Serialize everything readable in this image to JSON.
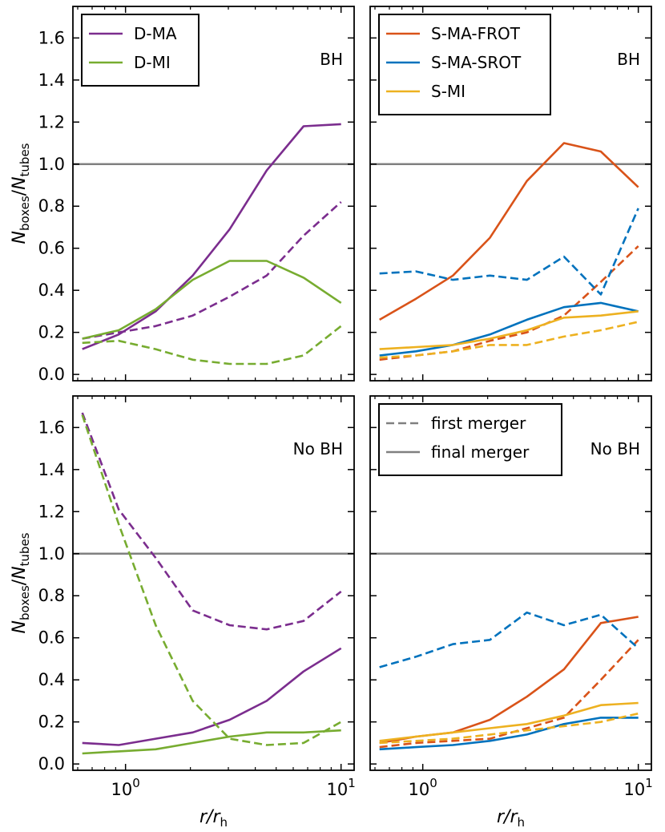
{
  "colors": {
    "D-MA": "#7b2d8e",
    "D-MI": "#77ac30",
    "S-MA-FROT": "#d95319",
    "S-MA-SROT": "#0072bd",
    "S-MI": "#edb120",
    "reference_line": "#808080",
    "legend_style": "#808080"
  },
  "chart_data": [
    {
      "type": "line",
      "panel": "top-left",
      "annotation": "BH",
      "xscale": "log",
      "xlim": [
        0.57,
        11.5
      ],
      "ylim": [
        -0.03,
        1.75
      ],
      "x": [
        0.63,
        0.93,
        1.38,
        2.05,
        3.04,
        4.52,
        6.7,
        10.0
      ],
      "hline": 1.0,
      "series": [
        {
          "name": "D-MA",
          "color_key": "D-MA",
          "style": "solid",
          "values": [
            0.12,
            0.19,
            0.3,
            0.47,
            0.69,
            0.97,
            1.18,
            1.19
          ]
        },
        {
          "color_key": "D-MA",
          "style": "dashed",
          "values": [
            0.17,
            0.2,
            0.23,
            0.28,
            0.37,
            0.47,
            0.66,
            0.82
          ]
        },
        {
          "name": "D-MI",
          "color_key": "D-MI",
          "style": "solid",
          "values": [
            0.17,
            0.21,
            0.31,
            0.45,
            0.54,
            0.54,
            0.46,
            0.34
          ]
        },
        {
          "color_key": "D-MI",
          "style": "dashed",
          "values": [
            0.15,
            0.16,
            0.12,
            0.07,
            0.05,
            0.05,
            0.09,
            0.23
          ]
        }
      ],
      "legend": {
        "placement": "top-left",
        "entries": [
          {
            "label": "D-MA",
            "color_key": "D-MA",
            "style": "solid"
          },
          {
            "label": "D-MI",
            "color_key": "D-MI",
            "style": "solid"
          }
        ]
      },
      "ylabel": "Nboxes/Ntubes"
    },
    {
      "type": "line",
      "panel": "top-right",
      "annotation": "BH",
      "xscale": "log",
      "xlim": [
        0.57,
        11.5
      ],
      "ylim": [
        -0.03,
        1.75
      ],
      "x": [
        0.63,
        0.93,
        1.38,
        2.05,
        3.04,
        4.52,
        6.7,
        10.0
      ],
      "hline": 1.0,
      "series": [
        {
          "name": "S-MA-FROT",
          "color_key": "S-MA-FROT",
          "style": "solid",
          "values": [
            0.26,
            0.36,
            0.47,
            0.65,
            0.92,
            1.1,
            1.06,
            0.89
          ]
        },
        {
          "color_key": "S-MA-FROT",
          "style": "dashed",
          "values": [
            0.07,
            0.09,
            0.11,
            0.16,
            0.2,
            0.28,
            0.44,
            0.61
          ]
        },
        {
          "name": "S-MA-SROT",
          "color_key": "S-MA-SROT",
          "style": "solid",
          "values": [
            0.09,
            0.11,
            0.14,
            0.19,
            0.26,
            0.32,
            0.34,
            0.3
          ]
        },
        {
          "color_key": "S-MA-SROT",
          "style": "dashed",
          "values": [
            0.48,
            0.49,
            0.45,
            0.47,
            0.45,
            0.56,
            0.38,
            0.79
          ]
        },
        {
          "name": "S-MI",
          "color_key": "S-MI",
          "style": "solid",
          "values": [
            0.12,
            0.13,
            0.14,
            0.17,
            0.21,
            0.27,
            0.28,
            0.3
          ]
        },
        {
          "color_key": "S-MI",
          "style": "dashed",
          "values": [
            0.08,
            0.09,
            0.11,
            0.14,
            0.14,
            0.18,
            0.21,
            0.25
          ]
        }
      ],
      "legend": {
        "placement": "top-left",
        "entries": [
          {
            "label": "S-MA-FROT",
            "color_key": "S-MA-FROT",
            "style": "solid"
          },
          {
            "label": "S-MA-SROT",
            "color_key": "S-MA-SROT",
            "style": "solid"
          },
          {
            "label": "S-MI",
            "color_key": "S-MI",
            "style": "solid"
          }
        ]
      }
    },
    {
      "type": "line",
      "panel": "bottom-left",
      "annotation": "No BH",
      "xscale": "log",
      "xlim": [
        0.57,
        11.5
      ],
      "ylim": [
        -0.03,
        1.75
      ],
      "x": [
        0.63,
        0.93,
        1.38,
        2.05,
        3.04,
        4.52,
        6.7,
        10.0
      ],
      "hline": 1.0,
      "series": [
        {
          "color_key": "D-MA",
          "style": "solid",
          "values": [
            0.1,
            0.09,
            0.12,
            0.15,
            0.21,
            0.3,
            0.44,
            0.55
          ]
        },
        {
          "color_key": "D-MA",
          "style": "dashed",
          "values": [
            1.67,
            1.21,
            0.98,
            0.73,
            0.66,
            0.64,
            0.68,
            0.82
          ]
        },
        {
          "color_key": "D-MI",
          "style": "solid",
          "values": [
            0.05,
            0.06,
            0.07,
            0.1,
            0.13,
            0.15,
            0.15,
            0.16
          ]
        },
        {
          "color_key": "D-MI",
          "style": "dashed",
          "values": [
            1.66,
            1.14,
            0.66,
            0.3,
            0.12,
            0.09,
            0.1,
            0.2
          ]
        }
      ],
      "xlabel": "r/rh",
      "ylabel": "Nboxes/Ntubes"
    },
    {
      "type": "line",
      "panel": "bottom-right",
      "annotation": "No BH",
      "xscale": "log",
      "xlim": [
        0.57,
        11.5
      ],
      "ylim": [
        -0.03,
        1.75
      ],
      "x": [
        0.63,
        0.93,
        1.38,
        2.05,
        3.04,
        4.52,
        6.7,
        10.0
      ],
      "hline": 1.0,
      "series": [
        {
          "color_key": "S-MA-FROT",
          "style": "solid",
          "values": [
            0.1,
            0.13,
            0.15,
            0.21,
            0.32,
            0.45,
            0.67,
            0.7
          ]
        },
        {
          "color_key": "S-MA-FROT",
          "style": "dashed",
          "values": [
            0.08,
            0.1,
            0.11,
            0.12,
            0.17,
            0.22,
            0.4,
            0.59
          ]
        },
        {
          "color_key": "S-MA-SROT",
          "style": "solid",
          "values": [
            0.07,
            0.08,
            0.09,
            0.11,
            0.14,
            0.19,
            0.22,
            0.22
          ]
        },
        {
          "color_key": "S-MA-SROT",
          "style": "dashed",
          "values": [
            0.46,
            0.51,
            0.57,
            0.59,
            0.72,
            0.66,
            0.71,
            0.55
          ]
        },
        {
          "color_key": "S-MI",
          "style": "solid",
          "values": [
            0.11,
            0.13,
            0.15,
            0.17,
            0.19,
            0.23,
            0.28,
            0.29
          ]
        },
        {
          "color_key": "S-MI",
          "style": "dashed",
          "values": [
            0.1,
            0.11,
            0.12,
            0.14,
            0.16,
            0.18,
            0.2,
            0.24
          ]
        }
      ],
      "legend": {
        "placement": "top-left",
        "entries": [
          {
            "label": "first merger",
            "color_key": "legend_style",
            "style": "dashed"
          },
          {
            "label": "final merger",
            "color_key": "legend_style",
            "style": "solid"
          }
        ]
      },
      "xlabel": "r/rh"
    }
  ],
  "axes": {
    "ylabel_main": "N",
    "ylabel_num_sub": "boxes",
    "ylabel_den_sub": "tubes",
    "ylabel_slash": "/",
    "xlabel_main": "r/r",
    "xlabel_sub": "h",
    "xtick_base": "10",
    "xtick_labels": [
      {
        "exp": "0",
        "value": 1
      },
      {
        "exp": "1",
        "value": 10
      }
    ],
    "yticks": [
      "0.0",
      "0.2",
      "0.4",
      "0.6",
      "0.8",
      "1.0",
      "1.2",
      "1.4",
      "1.6"
    ]
  }
}
